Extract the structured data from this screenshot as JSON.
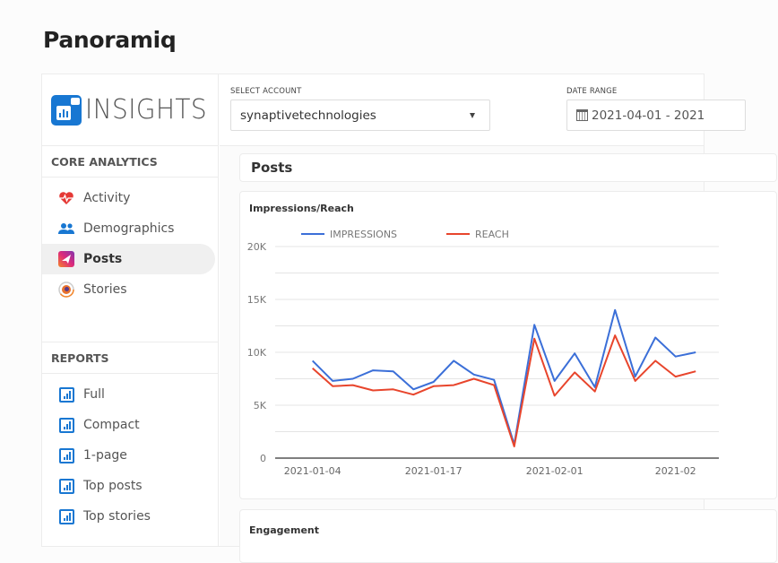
{
  "app": {
    "title": "Panoramiq"
  },
  "logo": {
    "text": "INSIGHTS"
  },
  "sidebar": {
    "core_heading": "CORE ANALYTICS",
    "core_items": [
      {
        "label": "Activity",
        "icon": "heartbeat-icon",
        "active": false
      },
      {
        "label": "Demographics",
        "icon": "users-icon",
        "active": false
      },
      {
        "label": "Posts",
        "icon": "paper-plane-icon",
        "active": true
      },
      {
        "label": "Stories",
        "icon": "stories-icon",
        "active": false
      }
    ],
    "reports_heading": "REPORTS",
    "report_items": [
      {
        "label": "Full",
        "icon": "report-chart-icon"
      },
      {
        "label": "Compact",
        "icon": "report-chart-icon"
      },
      {
        "label": "1-page",
        "icon": "report-chart-icon"
      },
      {
        "label": "Top posts",
        "icon": "report-chart-icon"
      },
      {
        "label": "Top stories",
        "icon": "report-chart-icon"
      }
    ]
  },
  "filters": {
    "account_label": "SELECT ACCOUNT",
    "account_value": "synaptivetechnologies",
    "date_label": "DATE RANGE",
    "date_value": "2021-04-01 - 2021"
  },
  "main": {
    "section_title": "Posts",
    "engagement_title": "Engagement"
  },
  "colors": {
    "impressions": "#3b6fd8",
    "reach": "#e8452c",
    "brand": "#1877d2"
  },
  "chart_data": {
    "type": "line",
    "title": "Impressions/Reach",
    "xlabel": "",
    "ylabel": "",
    "ylim": [
      0,
      20000
    ],
    "yticks": [
      "0",
      "5K",
      "10K",
      "15K",
      "20K"
    ],
    "xtick_labels": [
      "2021-01-04",
      "2021-01-17",
      "2021-02-01",
      "2021-02"
    ],
    "legend_position": "top",
    "grid": true,
    "series": [
      {
        "name": "IMPRESSIONS",
        "color": "#3b6fd8",
        "values": [
          9200,
          7300,
          7500,
          8300,
          8200,
          6500,
          7200,
          9200,
          7900,
          7400,
          1300,
          12600,
          7300,
          9900,
          6700,
          14000,
          7700,
          11400,
          9600,
          10000
        ]
      },
      {
        "name": "REACH",
        "color": "#e8452c",
        "values": [
          8500,
          6800,
          6900,
          6400,
          6500,
          6000,
          6800,
          6900,
          7500,
          6900,
          1100,
          11300,
          5900,
          8100,
          6300,
          11600,
          7300,
          9200,
          7700,
          8200
        ]
      }
    ]
  }
}
